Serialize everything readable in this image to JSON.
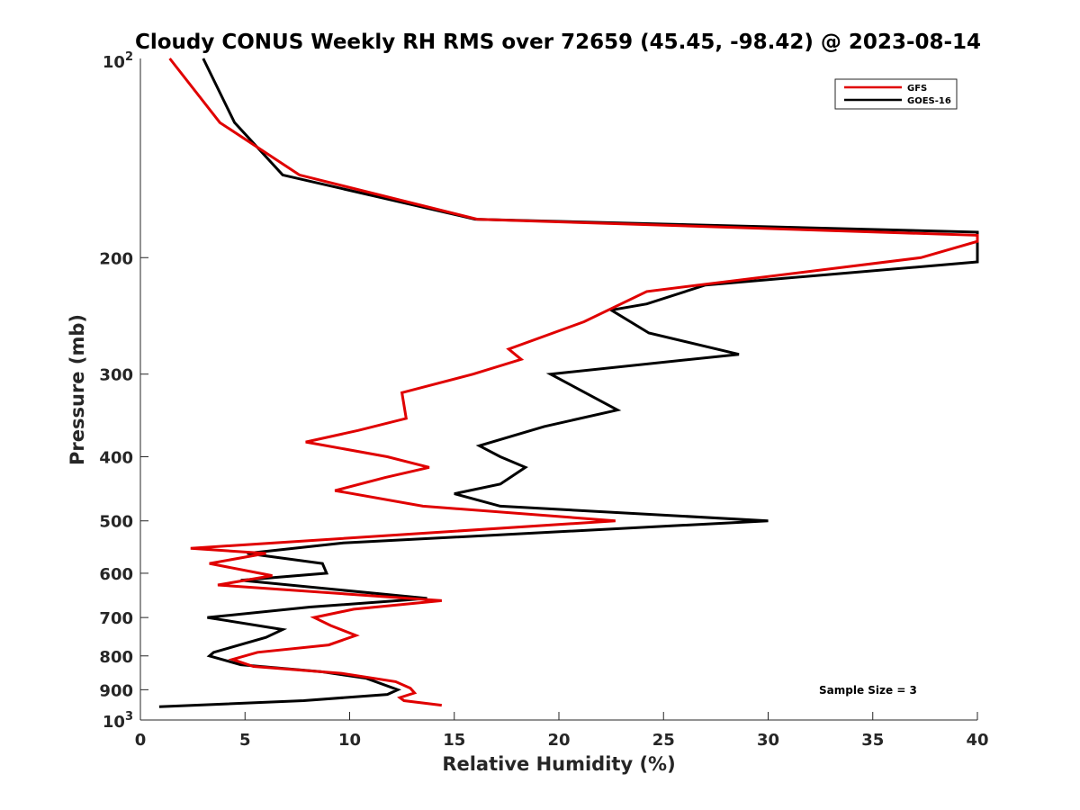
{
  "chart_data": {
    "type": "line",
    "title": "Cloudy CONUS Weekly RH RMS over 72659 (45.45, -98.42) @ 2023-08-14",
    "xlabel": "Relative Humidity (%)",
    "ylabel": "Pressure (mb)",
    "xlim": [
      0,
      40
    ],
    "ylim": [
      100,
      1000
    ],
    "y_scale": "log",
    "y_reversed": true,
    "x_ticks": [
      0,
      5,
      10,
      15,
      20,
      25,
      30,
      35,
      40
    ],
    "x_tick_labels": [
      "0",
      "5",
      "10",
      "15",
      "20",
      "25",
      "30",
      "35",
      "40"
    ],
    "y_ticks": [
      200,
      300,
      400,
      500,
      600,
      700,
      800,
      900
    ],
    "y_tick_labels": [
      "200",
      "300",
      "400",
      "500",
      "600",
      "700",
      "800",
      "900"
    ],
    "y_top_label": {
      "base": "10",
      "exp": "2"
    },
    "y_bottom_label": {
      "base": "10",
      "exp": "3"
    },
    "grid": false,
    "legend_position": "top-right",
    "annotation": "Sample Size = 3",
    "series": [
      {
        "name": "GFS",
        "color": "#e00000",
        "points": [
          [
            1.4,
            100
          ],
          [
            3.8,
            125
          ],
          [
            7.6,
            150
          ],
          [
            16.1,
            175
          ],
          [
            40.0,
            185
          ],
          [
            40.0,
            189
          ],
          [
            37.3,
            200
          ],
          [
            24.2,
            225
          ],
          [
            21.2,
            250
          ],
          [
            17.6,
            275
          ],
          [
            18.2,
            285
          ],
          [
            15.9,
            300
          ],
          [
            12.5,
            320
          ],
          [
            12.7,
            350
          ],
          [
            10.4,
            365
          ],
          [
            7.9,
            380
          ],
          [
            11.8,
            400
          ],
          [
            13.8,
            415
          ],
          [
            11.7,
            430
          ],
          [
            9.3,
            450
          ],
          [
            13.5,
            475
          ],
          [
            22.7,
            500
          ],
          [
            2.4,
            550
          ],
          [
            6.0,
            560
          ],
          [
            3.3,
            580
          ],
          [
            6.3,
            605
          ],
          [
            3.7,
            625
          ],
          [
            14.4,
            660
          ],
          [
            10.2,
            680
          ],
          [
            8.3,
            700
          ],
          [
            9.1,
            720
          ],
          [
            10.3,
            745
          ],
          [
            9.0,
            770
          ],
          [
            5.6,
            790
          ],
          [
            4.4,
            810
          ],
          [
            5.4,
            830
          ],
          [
            9.6,
            850
          ],
          [
            12.2,
            875
          ],
          [
            12.9,
            895
          ],
          [
            13.1,
            910
          ],
          [
            12.4,
            925
          ],
          [
            12.6,
            935
          ],
          [
            14.4,
            950
          ]
        ]
      },
      {
        "name": "GOES-16",
        "color": "#000000",
        "points": [
          [
            3.0,
            100
          ],
          [
            4.5,
            125
          ],
          [
            6.8,
            150
          ],
          [
            16.0,
            175
          ],
          [
            40.0,
            183
          ],
          [
            40.0,
            203
          ],
          [
            27.0,
            220
          ],
          [
            24.2,
            235
          ],
          [
            22.5,
            240
          ],
          [
            24.3,
            260
          ],
          [
            28.6,
            280
          ],
          [
            19.6,
            300
          ],
          [
            22.8,
            340
          ],
          [
            19.3,
            360
          ],
          [
            16.2,
            385
          ],
          [
            17.2,
            400
          ],
          [
            18.4,
            415
          ],
          [
            17.2,
            440
          ],
          [
            15.0,
            455
          ],
          [
            17.2,
            475
          ],
          [
            30.0,
            500
          ],
          [
            9.7,
            540
          ],
          [
            5.1,
            560
          ],
          [
            8.7,
            580
          ],
          [
            8.9,
            600
          ],
          [
            4.8,
            615
          ],
          [
            13.7,
            655
          ],
          [
            12.3,
            660
          ],
          [
            8.1,
            675
          ],
          [
            3.2,
            700
          ],
          [
            6.8,
            730
          ],
          [
            6.0,
            750
          ],
          [
            3.5,
            790
          ],
          [
            3.3,
            800
          ],
          [
            4.8,
            825
          ],
          [
            8.6,
            845
          ],
          [
            10.8,
            865
          ],
          [
            12.3,
            900
          ],
          [
            11.8,
            915
          ],
          [
            7.8,
            935
          ],
          [
            0.9,
            955
          ]
        ]
      }
    ]
  }
}
